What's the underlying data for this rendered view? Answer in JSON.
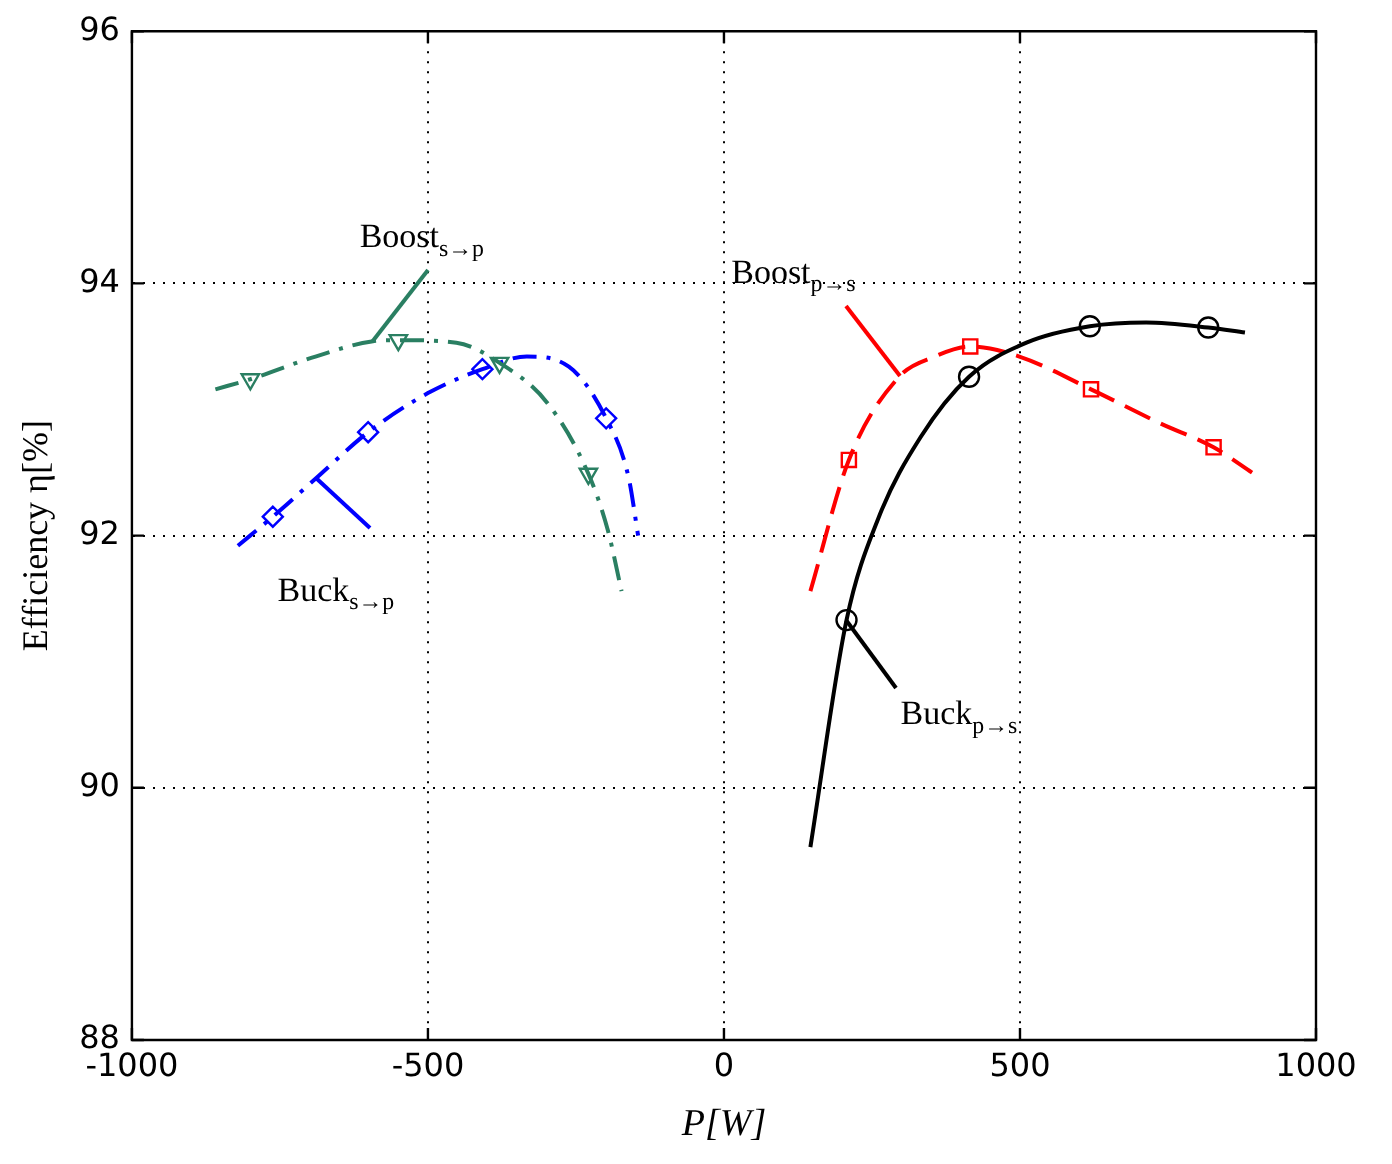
{
  "chart_data": {
    "type": "line",
    "xlabel": "P[W]",
    "ylabel": "Efficiency η[%]",
    "xlim": [
      -1000,
      1000
    ],
    "xticks": [
      -1000,
      -500,
      0,
      500,
      1000
    ],
    "ylim": [
      88,
      96
    ],
    "yticks": [
      88,
      90,
      92,
      94,
      96
    ],
    "grid": true,
    "series": [
      {
        "name": "Buck$_{p→s}$",
        "color": "#000000",
        "line_style": "solid",
        "marker": "none",
        "x": [
          146,
          207,
          261,
          332,
          414,
          511,
          618,
          713,
          818,
          880
        ],
        "values": [
          89.53,
          91.33,
          92.14,
          92.78,
          93.26,
          93.53,
          93.66,
          93.69,
          93.65,
          93.61
        ]
      },
      {
        "name": "Boost$_{p→s}$",
        "color": "#ff0000",
        "line_style": "dashed",
        "marker": "none",
        "x": [
          146,
          211,
          296,
          356,
          416,
          499,
          620,
          737,
          827,
          892
        ],
        "values": [
          91.56,
          92.6,
          93.26,
          93.42,
          93.5,
          93.42,
          93.16,
          92.89,
          92.7,
          92.5
        ]
      },
      {
        "name": "Boost$_{s→p}$",
        "color": "#2a7f62",
        "line_style": "dashdot",
        "marker": "none",
        "x": [
          -859,
          -800,
          -690,
          -595,
          -550,
          -452,
          -379,
          -298,
          -229,
          -196,
          -173
        ],
        "values": [
          93.16,
          93.24,
          93.42,
          93.54,
          93.55,
          93.53,
          93.37,
          93.05,
          92.49,
          92.04,
          91.56
        ]
      },
      {
        "name": "Buck$_{s→p}$",
        "color": "#0000ff",
        "line_style": "dashdot",
        "marker": "none",
        "x": [
          -821,
          -762,
          -690,
          -601,
          -500,
          -408,
          -333,
          -262,
          -199,
          -161,
          -145
        ],
        "values": [
          91.92,
          92.15,
          92.45,
          92.82,
          93.13,
          93.32,
          93.42,
          93.34,
          92.93,
          92.46,
          92.0
        ]
      },
      {
        "type": "scatter",
        "color": "#000000",
        "marker": "circle",
        "x": [
          207,
          414,
          618,
          818
        ],
        "values": [
          91.33,
          93.26,
          93.66,
          93.65
        ]
      },
      {
        "type": "scatter",
        "color": "#ff0000",
        "marker": "square",
        "x": [
          211,
          416,
          620,
          827
        ],
        "values": [
          92.6,
          93.5,
          93.16,
          92.7
        ]
      },
      {
        "type": "scatter",
        "color": "#2a7f62",
        "marker": "triangle",
        "x": [
          -800,
          -550,
          -379,
          -229
        ],
        "values": [
          93.24,
          93.55,
          93.37,
          92.49
        ]
      },
      {
        "type": "scatter",
        "color": "#0000ff",
        "marker": "diamond",
        "x": [
          -762,
          -601,
          -408,
          -199
        ],
        "values": [
          92.15,
          92.82,
          93.32,
          92.93
        ]
      }
    ]
  }
}
